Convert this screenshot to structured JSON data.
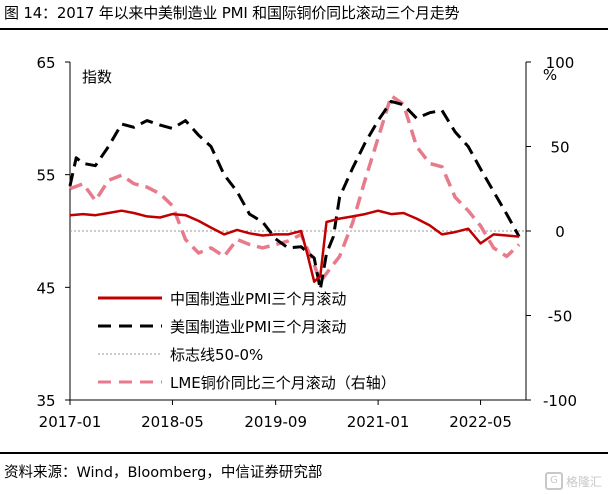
{
  "title": "图 14：2017 年以来中美制造业 PMI 和国际铜价同比滚动三个月走势",
  "source": "资料来源：Wind，Bloomberg，中信证券研究部",
  "watermark": {
    "text": "格隆汇",
    "icon": "G"
  },
  "chart_data": {
    "type": "line",
    "left_axis_label": "指数",
    "right_axis_label": "%",
    "left_ylim": [
      35,
      65
    ],
    "left_ticks": [
      "65",
      "55",
      "45",
      "35"
    ],
    "right_ylim": [
      -100,
      100
    ],
    "right_ticks": [
      "100",
      "50",
      "0",
      "-50",
      "-100"
    ],
    "xlim": [
      2017.0,
      2022.92
    ],
    "x_ticks": [
      {
        "x": 2017.0,
        "label": "2017-01"
      },
      {
        "x": 2018.33,
        "label": "2018-05"
      },
      {
        "x": 2019.67,
        "label": "2019-09"
      },
      {
        "x": 2021.0,
        "label": "2021-01"
      },
      {
        "x": 2022.33,
        "label": "2022-05"
      }
    ],
    "legend": [
      {
        "label": "中国制造业PMI三个月滚动",
        "style": "solid",
        "color": "#c00000"
      },
      {
        "label": "美国制造业PMI三个月滚动",
        "style": "dashed",
        "color": "#000000"
      },
      {
        "label": "标志线50-0%",
        "style": "dotted",
        "color": "#999999"
      },
      {
        "label": "LME铜价同比三个月滚动（右轴）",
        "style": "dashed",
        "color": "#e87b8b"
      }
    ],
    "reference_line": {
      "value": 50,
      "axis": "left"
    },
    "series": [
      {
        "name": "中国制造业PMI三个月滚动",
        "axis": "left",
        "color": "#c00000",
        "style": "solid",
        "x": [
          2017.0,
          2017.17,
          2017.33,
          2017.5,
          2017.67,
          2017.83,
          2018.0,
          2018.17,
          2018.33,
          2018.5,
          2018.67,
          2018.83,
          2019.0,
          2019.17,
          2019.33,
          2019.5,
          2019.67,
          2019.83,
          2020.0,
          2020.08,
          2020.17,
          2020.25,
          2020.33,
          2020.5,
          2020.67,
          2020.83,
          2021.0,
          2021.17,
          2021.33,
          2021.5,
          2021.67,
          2021.83,
          2022.0,
          2022.17,
          2022.33,
          2022.5,
          2022.67,
          2022.83
        ],
        "y": [
          51.4,
          51.5,
          51.4,
          51.6,
          51.8,
          51.6,
          51.3,
          51.2,
          51.5,
          51.4,
          50.9,
          50.3,
          49.7,
          50.1,
          49.8,
          49.6,
          49.7,
          49.7,
          50.0,
          48.0,
          45.5,
          46.0,
          50.8,
          51.1,
          51.3,
          51.5,
          51.8,
          51.5,
          51.6,
          51.1,
          50.5,
          49.7,
          49.9,
          50.2,
          48.9,
          49.7,
          49.6,
          49.5
        ]
      },
      {
        "name": "美国制造业PMI三个月滚动",
        "axis": "left",
        "color": "#000000",
        "style": "dashed",
        "x": [
          2017.0,
          2017.08,
          2017.17,
          2017.33,
          2017.5,
          2017.67,
          2017.83,
          2018.0,
          2018.17,
          2018.33,
          2018.5,
          2018.67,
          2018.83,
          2019.0,
          2019.17,
          2019.33,
          2019.5,
          2019.67,
          2019.83,
          2020.0,
          2020.17,
          2020.25,
          2020.33,
          2020.42,
          2020.5,
          2020.67,
          2020.83,
          2021.0,
          2021.17,
          2021.33,
          2021.5,
          2021.67,
          2021.83,
          2022.0,
          2022.17,
          2022.33,
          2022.5,
          2022.67,
          2022.83
        ],
        "y": [
          54.0,
          56.5,
          56.0,
          55.8,
          57.5,
          59.5,
          59.2,
          59.8,
          59.4,
          59.1,
          59.8,
          58.5,
          57.5,
          55.0,
          53.5,
          51.5,
          50.8,
          49.3,
          48.5,
          48.6,
          47.6,
          44.8,
          48.0,
          49.5,
          53.0,
          55.6,
          57.8,
          59.8,
          61.5,
          61.2,
          60.0,
          60.5,
          60.7,
          58.8,
          57.5,
          55.5,
          53.5,
          51.5,
          49.5
        ]
      },
      {
        "name": "LME铜价同比三个月滚动（右轴）",
        "axis": "right",
        "color": "#e87b8b",
        "style": "dashed",
        "x": [
          2017.0,
          2017.17,
          2017.33,
          2017.5,
          2017.67,
          2017.83,
          2018.0,
          2018.17,
          2018.33,
          2018.5,
          2018.67,
          2018.83,
          2019.0,
          2019.17,
          2019.33,
          2019.5,
          2019.67,
          2019.83,
          2020.0,
          2020.17,
          2020.25,
          2020.33,
          2020.5,
          2020.67,
          2020.83,
          2021.0,
          2021.17,
          2021.33,
          2021.5,
          2021.67,
          2021.83,
          2022.0,
          2022.17,
          2022.33,
          2022.5,
          2022.67,
          2022.83
        ],
        "y": [
          25,
          28,
          18,
          30,
          33,
          28,
          26,
          22,
          15,
          -5,
          -13,
          -10,
          -15,
          -5,
          -8,
          -10,
          -8,
          -6,
          -2,
          -20,
          -30,
          -25,
          -15,
          5,
          30,
          55,
          80,
          75,
          50,
          40,
          38,
          20,
          12,
          3,
          -10,
          -15,
          -8
        ]
      }
    ]
  }
}
